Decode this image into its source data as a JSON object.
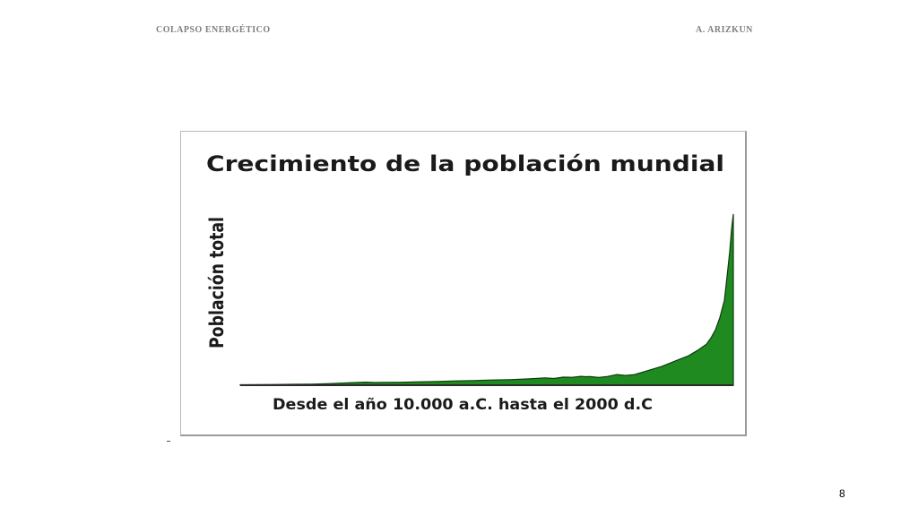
{
  "header": {
    "left": "COLAPSO ENERGÉTICO",
    "right": "A. ARIZKUN"
  },
  "page_number": "8",
  "chart_data": {
    "type": "area",
    "title": "Crecimiento de la población mundial",
    "xlabel": "Desde el año 10.000 a.C. hasta el 2000 d.C",
    "ylabel": "Población total",
    "x": [
      0,
      20,
      40,
      60,
      80,
      100,
      120,
      140,
      150,
      160,
      180,
      200,
      220,
      240,
      260,
      280,
      300,
      320,
      340,
      350,
      360,
      370,
      380,
      385,
      390,
      400,
      410,
      420,
      430,
      440,
      450,
      460,
      470,
      480,
      490,
      500,
      510,
      520,
      525,
      530,
      535,
      540,
      543,
      546,
      548,
      550
    ],
    "values": [
      0.5,
      0.6,
      0.8,
      1.0,
      1.2,
      1.8,
      2.6,
      3.4,
      3.0,
      3.2,
      3.3,
      3.8,
      4.2,
      4.8,
      5.2,
      5.8,
      6.2,
      7.0,
      8.2,
      7.5,
      9.0,
      8.8,
      10.0,
      9.5,
      9.6,
      8.6,
      9.8,
      12.0,
      11.0,
      12.0,
      15.0,
      18.0,
      21.0,
      25.0,
      29.0,
      33.0,
      39.0,
      46.0,
      53.0,
      62.0,
      76.0,
      95.0,
      122.0,
      150.0,
      175.0,
      192.0
    ],
    "ylim": [
      0,
      200
    ],
    "xlim": [
      0,
      550
    ],
    "fill_color": "#1f8a1f",
    "line_color": "#0d3d0d",
    "grid": false,
    "legend": "none"
  }
}
